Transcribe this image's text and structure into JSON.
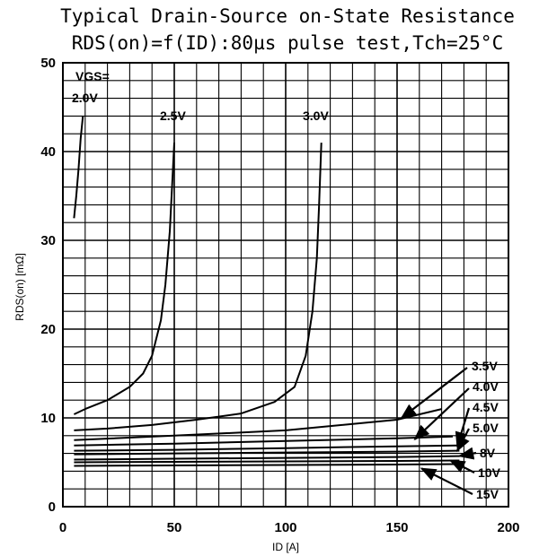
{
  "chart_data": {
    "type": "line",
    "title": "Typical Drain-Source on-State Resistance",
    "subtitle": "RDS(on)=f(ID):80µs pulse test,Tch=25°C",
    "xlabel": "ID [A]",
    "ylabel": "RDS(on)  [mΩ]",
    "xlim": [
      0,
      200
    ],
    "ylim": [
      0,
      50
    ],
    "x_ticks": [
      "0",
      "50",
      "100",
      "150",
      "200"
    ],
    "y_ticks": [
      "0",
      "10",
      "20",
      "30",
      "40",
      "50"
    ],
    "grid": true,
    "series": [
      {
        "name": "VGS=2.0V",
        "x": [
          5,
          6,
          7,
          8,
          9
        ],
        "y": [
          32.5,
          35,
          38,
          41.5,
          44
        ]
      },
      {
        "name": "2.5V",
        "x": [
          5,
          10,
          20,
          30,
          36,
          40,
          44,
          46,
          48,
          49,
          50
        ],
        "y": [
          10.4,
          11,
          12,
          13.5,
          15,
          17,
          21,
          25,
          31,
          36,
          41
        ]
      },
      {
        "name": "3.0V",
        "x": [
          5,
          20,
          40,
          60,
          80,
          95,
          104,
          109,
          112,
          114,
          115,
          116
        ],
        "y": [
          8.6,
          8.8,
          9.2,
          9.8,
          10.5,
          11.8,
          13.5,
          17,
          22,
          28,
          34,
          41
        ]
      },
      {
        "name": "3.5V",
        "x": [
          5,
          50,
          100,
          150,
          170
        ],
        "y": [
          7.5,
          8,
          8.6,
          9.8,
          11
        ]
      },
      {
        "name": "4.0V",
        "x": [
          5,
          50,
          100,
          150,
          175
        ],
        "y": [
          6.9,
          7.1,
          7.4,
          7.7,
          7.9
        ]
      },
      {
        "name": "4.5V",
        "x": [
          5,
          50,
          100,
          150,
          178
        ],
        "y": [
          6.3,
          6.4,
          6.6,
          6.8,
          6.9
        ]
      },
      {
        "name": "5.0V",
        "x": [
          5,
          50,
          100,
          150,
          178
        ],
        "y": [
          5.9,
          6,
          6.1,
          6.2,
          6.3
        ]
      },
      {
        "name": "8V",
        "x": [
          5,
          50,
          100,
          150,
          178
        ],
        "y": [
          5.3,
          5.4,
          5.5,
          5.6,
          5.7
        ]
      },
      {
        "name": "10V",
        "x": [
          5,
          50,
          100,
          150,
          178
        ],
        "y": [
          5,
          5.05,
          5.1,
          5.15,
          5.2
        ]
      },
      {
        "name": "15V",
        "x": [
          5,
          50,
          100,
          150,
          178
        ],
        "y": [
          4.6,
          4.65,
          4.7,
          4.75,
          4.8
        ]
      }
    ],
    "annotations": [
      {
        "text": "VGS=",
        "for": "VGS=2.0V"
      },
      {
        "text": "2.0V",
        "for": "VGS=2.0V"
      },
      {
        "text": "2.5V",
        "for": "2.5V"
      },
      {
        "text": "3.0V",
        "for": "3.0V"
      },
      {
        "text": "3.5V",
        "for": "3.5V",
        "arrow_to": [
          152,
          10
        ]
      },
      {
        "text": "4.0V",
        "for": "4.0V",
        "arrow_to": [
          158,
          7.6
        ]
      },
      {
        "text": "4.5V",
        "for": "4.5V",
        "arrow_to": [
          177,
          6.8
        ]
      },
      {
        "text": "5.0V",
        "for": "5.0V",
        "arrow_to": [
          177,
          6.3
        ]
      },
      {
        "text": "8V",
        "for": "8V",
        "arrow_to": [
          178,
          5.7
        ]
      },
      {
        "text": "10V",
        "for": "10V",
        "arrow_to": [
          174,
          5.2
        ]
      },
      {
        "text": "15V",
        "for": "15V",
        "arrow_to": [
          161,
          4.3
        ]
      }
    ]
  }
}
